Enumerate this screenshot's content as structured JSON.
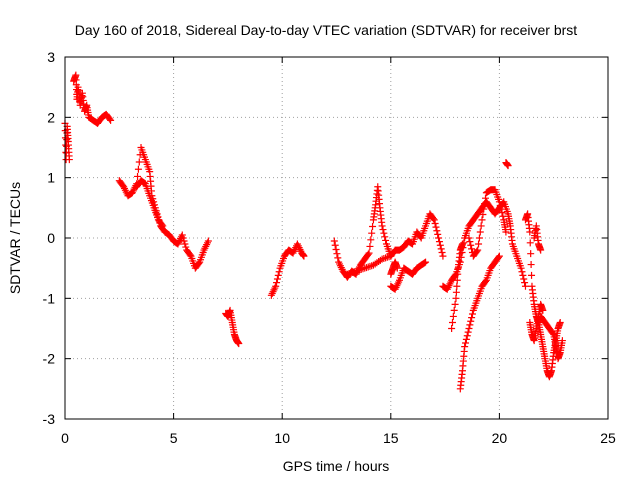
{
  "chart_data": {
    "type": "scatter",
    "title": "Day 160 of 2018, Sidereal Day-to-day VTEC variation (SDTVAR) for receiver brst",
    "xlabel": "GPS time / hours",
    "ylabel": "SDTVAR / TECUs",
    "xlim": [
      0,
      25
    ],
    "ylim": [
      -3,
      3
    ],
    "xticks": [
      "0",
      "5",
      "10",
      "15",
      "20",
      "25"
    ],
    "yticks": [
      "3",
      "2",
      "1",
      "0",
      "-1",
      "-2",
      "-3"
    ],
    "grid": true,
    "marker": "+",
    "color": "#ff0000",
    "series": [
      {
        "name": "brst",
        "segments": [
          [
            [
              0.0,
              1.9
            ],
            [
              0.05,
              1.3
            ],
            [
              0.1,
              1.85
            ],
            [
              0.15,
              1.6
            ],
            [
              0.2,
              1.3
            ]
          ],
          [
            [
              0.4,
              2.6
            ],
            [
              0.5,
              2.7
            ],
            [
              0.55,
              2.3
            ],
            [
              0.6,
              2.5
            ],
            [
              0.7,
              2.2
            ],
            [
              0.8,
              2.4
            ],
            [
              0.9,
              2.1
            ],
            [
              1.0,
              2.2
            ],
            [
              1.1,
              2.0
            ],
            [
              1.3,
              1.95
            ],
            [
              1.5,
              1.9
            ],
            [
              1.7,
              2.0
            ],
            [
              1.9,
              2.05
            ],
            [
              2.1,
              1.95
            ]
          ],
          [
            [
              2.5,
              0.95
            ],
            [
              2.7,
              0.85
            ],
            [
              2.9,
              0.7
            ],
            [
              3.1,
              0.75
            ],
            [
              3.3,
              0.9
            ],
            [
              3.5,
              1.5
            ],
            [
              3.7,
              1.3
            ],
            [
              3.9,
              1.1
            ],
            [
              4.0,
              0.7
            ],
            [
              4.2,
              0.45
            ],
            [
              4.4,
              0.2
            ],
            [
              4.6,
              0.1
            ],
            [
              4.8,
              0.05
            ],
            [
              5.0,
              -0.05
            ],
            [
              5.2,
              -0.1
            ],
            [
              5.4,
              0.05
            ],
            [
              5.6,
              -0.2
            ],
            [
              5.8,
              -0.3
            ],
            [
              6.0,
              -0.5
            ],
            [
              6.2,
              -0.4
            ],
            [
              6.4,
              -0.2
            ],
            [
              6.6,
              -0.05
            ]
          ],
          [
            [
              3.3,
              0.85
            ],
            [
              3.5,
              0.95
            ],
            [
              3.7,
              0.9
            ],
            [
              3.9,
              0.7
            ],
            [
              4.1,
              0.5
            ],
            [
              4.3,
              0.3
            ],
            [
              4.5,
              0.2
            ]
          ],
          [
            [
              7.4,
              -1.25
            ],
            [
              7.5,
              -1.3
            ],
            [
              7.6,
              -1.2
            ],
            [
              7.7,
              -1.4
            ],
            [
              7.8,
              -1.6
            ],
            [
              7.9,
              -1.7
            ],
            [
              8.0,
              -1.75
            ]
          ],
          [
            [
              9.5,
              -0.95
            ],
            [
              9.7,
              -0.8
            ],
            [
              9.9,
              -0.5
            ],
            [
              10.1,
              -0.3
            ],
            [
              10.3,
              -0.2
            ],
            [
              10.5,
              -0.25
            ],
            [
              10.7,
              -0.1
            ],
            [
              10.9,
              -0.25
            ],
            [
              11.0,
              -0.3
            ]
          ],
          [
            [
              12.4,
              -0.05
            ],
            [
              12.6,
              -0.4
            ],
            [
              12.8,
              -0.55
            ],
            [
              13.0,
              -0.65
            ],
            [
              13.2,
              -0.55
            ],
            [
              13.4,
              -0.6
            ],
            [
              13.6,
              -0.45
            ],
            [
              13.8,
              -0.35
            ],
            [
              14.0,
              -0.25
            ],
            [
              14.2,
              0.3
            ],
            [
              14.3,
              0.55
            ],
            [
              14.4,
              0.85
            ],
            [
              14.5,
              0.5
            ],
            [
              14.6,
              0.2
            ],
            [
              14.8,
              -0.1
            ],
            [
              15.0,
              -0.3
            ],
            [
              15.2,
              -0.2
            ],
            [
              15.4,
              -0.2
            ],
            [
              15.6,
              -0.15
            ],
            [
              15.8,
              -0.05
            ],
            [
              16.0,
              -0.1
            ],
            [
              16.2,
              0.1
            ],
            [
              16.4,
              0.0
            ],
            [
              16.6,
              0.2
            ],
            [
              16.8,
              0.4
            ],
            [
              17.0,
              0.3
            ],
            [
              17.2,
              0.0
            ],
            [
              17.4,
              -0.3
            ]
          ],
          [
            [
              13.0,
              -0.6
            ],
            [
              13.4,
              -0.55
            ],
            [
              13.8,
              -0.5
            ],
            [
              14.2,
              -0.45
            ],
            [
              14.6,
              -0.35
            ],
            [
              15.0,
              -0.3
            ]
          ],
          [
            [
              15.0,
              -0.8
            ],
            [
              15.2,
              -0.85
            ],
            [
              15.4,
              -0.7
            ],
            [
              15.6,
              -0.5
            ],
            [
              15.8,
              -0.55
            ],
            [
              16.0,
              -0.6
            ],
            [
              16.2,
              -0.5
            ],
            [
              16.4,
              -0.45
            ],
            [
              16.6,
              -0.4
            ]
          ],
          [
            [
              15.0,
              -0.6
            ],
            [
              15.1,
              -0.5
            ],
            [
              15.2,
              -0.4
            ],
            [
              15.3,
              -0.5
            ]
          ],
          [
            [
              17.4,
              -0.8
            ],
            [
              17.6,
              -0.85
            ],
            [
              17.8,
              -0.7
            ],
            [
              18.0,
              -0.6
            ],
            [
              18.2,
              -0.4
            ],
            [
              18.4,
              0.0
            ],
            [
              18.6,
              0.2
            ],
            [
              18.8,
              0.3
            ],
            [
              19.0,
              0.4
            ],
            [
              19.2,
              0.5
            ],
            [
              19.4,
              0.6
            ],
            [
              19.6,
              0.5
            ],
            [
              19.8,
              0.4
            ],
            [
              20.0,
              0.5
            ],
            [
              20.2,
              0.6
            ],
            [
              20.4,
              0.4
            ],
            [
              20.5,
              0.2
            ],
            [
              20.6,
              -0.1
            ],
            [
              20.8,
              -0.3
            ],
            [
              21.0,
              -0.5
            ],
            [
              21.2,
              -0.8
            ]
          ],
          [
            [
              17.8,
              -1.5
            ],
            [
              18.0,
              -1.0
            ],
            [
              18.1,
              -0.5
            ],
            [
              18.2,
              -0.2
            ],
            [
              18.3,
              -0.1
            ]
          ],
          [
            [
              18.2,
              -2.5
            ],
            [
              18.3,
              -2.2
            ],
            [
              18.4,
              -1.8
            ],
            [
              18.6,
              -1.5
            ],
            [
              18.8,
              -1.2
            ],
            [
              19.0,
              -1.0
            ],
            [
              19.2,
              -0.8
            ],
            [
              19.4,
              -0.7
            ],
            [
              19.6,
              -0.5
            ],
            [
              19.8,
              -0.4
            ],
            [
              20.0,
              -0.3
            ]
          ],
          [
            [
              18.6,
              0.0
            ],
            [
              18.8,
              -0.3
            ],
            [
              19.0,
              -0.2
            ],
            [
              19.2,
              0.3
            ],
            [
              19.4,
              0.75
            ],
            [
              19.6,
              0.8
            ],
            [
              19.8,
              0.8
            ],
            [
              20.0,
              0.6
            ],
            [
              20.2,
              0.3
            ],
            [
              20.3,
              0.1
            ]
          ],
          [
            [
              20.3,
              1.25
            ],
            [
              20.4,
              1.2
            ]
          ],
          [
            [
              21.2,
              0.3
            ],
            [
              21.3,
              0.4
            ],
            [
              21.4,
              0.1
            ],
            [
              21.5,
              -0.8
            ],
            [
              21.6,
              -1.1
            ],
            [
              21.7,
              -1.3
            ],
            [
              21.8,
              -1.4
            ],
            [
              21.9,
              -1.6
            ],
            [
              22.0,
              -1.8
            ],
            [
              22.1,
              -2.0
            ],
            [
              22.2,
              -2.2
            ],
            [
              22.3,
              -2.3
            ],
            [
              22.4,
              -2.2
            ],
            [
              22.5,
              -1.9
            ],
            [
              22.6,
              -1.7
            ],
            [
              22.7,
              -1.5
            ],
            [
              22.8,
              -1.4
            ]
          ],
          [
            [
              21.4,
              -1.4
            ],
            [
              21.5,
              -1.6
            ],
            [
              21.6,
              -1.7
            ],
            [
              21.7,
              -1.5
            ],
            [
              21.8,
              -1.3
            ],
            [
              21.9,
              -1.1
            ],
            [
              22.0,
              -1.2
            ]
          ],
          [
            [
              21.6,
              0.0
            ],
            [
              21.7,
              0.2
            ],
            [
              21.8,
              -0.1
            ],
            [
              21.9,
              -0.2
            ]
          ],
          [
            [
              21.9,
              -1.3
            ],
            [
              22.1,
              -1.4
            ],
            [
              22.3,
              -1.5
            ],
            [
              22.5,
              -1.6
            ],
            [
              22.6,
              -1.8
            ],
            [
              22.7,
              -2.0
            ],
            [
              22.8,
              -1.9
            ],
            [
              22.9,
              -1.7
            ]
          ]
        ]
      }
    ]
  }
}
